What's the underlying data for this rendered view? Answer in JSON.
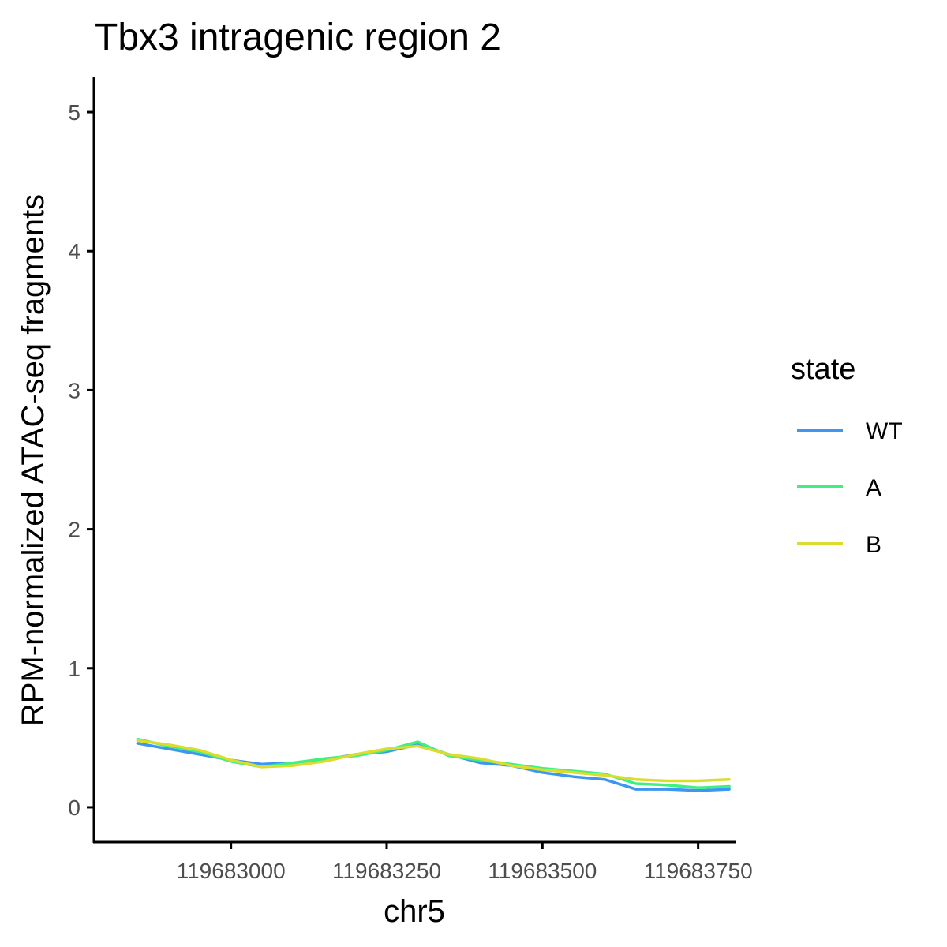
{
  "chart_data": {
    "type": "line",
    "title": "Tbx3 intragenic region 2",
    "xlabel": "chr5",
    "ylabel": "RPM-normalized ATAC-seq fragments",
    "xlim": [
      119682780,
      119683810
    ],
    "ylim": [
      -0.25,
      5.25
    ],
    "x_ticks": [
      119683000,
      119683250,
      119683500,
      119683750
    ],
    "x_tick_labels": [
      "119683000",
      "119683250",
      "119683500",
      "119683750"
    ],
    "y_ticks": [
      0,
      1,
      2,
      3,
      4,
      5
    ],
    "y_tick_labels": [
      "0",
      "1",
      "2",
      "3",
      "4",
      "5"
    ],
    "grid": false,
    "legend": {
      "title": "state",
      "position": "right"
    },
    "x": [
      119682850,
      119682900,
      119682950,
      119683000,
      119683050,
      119683100,
      119683150,
      119683200,
      119683250,
      119683300,
      119683350,
      119683400,
      119683450,
      119683500,
      119683550,
      119683600,
      119683650,
      119683700,
      119683750,
      119683800
    ],
    "series": [
      {
        "name": "WT",
        "color": "#3d96f0",
        "values": [
          0.46,
          0.42,
          0.38,
          0.34,
          0.31,
          0.32,
          0.34,
          0.38,
          0.4,
          0.45,
          0.38,
          0.32,
          0.3,
          0.25,
          0.22,
          0.2,
          0.13,
          0.13,
          0.12,
          0.13
        ]
      },
      {
        "name": "A",
        "color": "#3df080",
        "values": [
          0.49,
          0.44,
          0.4,
          0.33,
          0.29,
          0.32,
          0.35,
          0.37,
          0.41,
          0.47,
          0.37,
          0.34,
          0.31,
          0.28,
          0.26,
          0.24,
          0.17,
          0.16,
          0.14,
          0.15
        ]
      },
      {
        "name": "B",
        "color": "#dcdc2e",
        "values": [
          0.48,
          0.45,
          0.41,
          0.34,
          0.29,
          0.3,
          0.33,
          0.38,
          0.42,
          0.44,
          0.38,
          0.35,
          0.3,
          0.27,
          0.25,
          0.23,
          0.2,
          0.19,
          0.19,
          0.2
        ]
      }
    ]
  }
}
